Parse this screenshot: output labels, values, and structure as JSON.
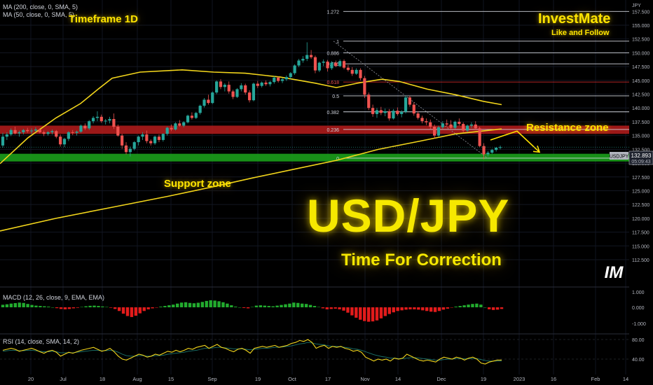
{
  "header": {
    "indicator_ma200": "MA (200, close, 0, SMA, 5)",
    "indicator_ma50": "MA (50, close, 0, SMA, 5)",
    "timeframe": "Timeframe 1D",
    "brand": "InvestMate",
    "brand_sub": "Like and Follow",
    "currency": "JPY"
  },
  "annotations": {
    "title": "USD/JPY",
    "subtitle": "Time For Correction",
    "support": "Support zone",
    "resistance": "Resistance zone",
    "logo": "IM"
  },
  "panels": {
    "macd_label": "MACD (12, 26, close, 9, EMA, EMA)",
    "rsi_label": "RSI (14, close, SMA, 14, 2)"
  },
  "price_tag": {
    "symbol": "USDJPY",
    "price": "132.893",
    "countdown": "05:09:43"
  },
  "colors": {
    "up": "#26a69a",
    "down": "#ef5350",
    "ma": "#f2d51b",
    "resistance": "#b71c1c",
    "support": "#1b9e1b",
    "accent": "#ffe400"
  },
  "chart_data": {
    "type": "candlestick",
    "price_axis": [
      "155.000",
      "152.500",
      "150.000",
      "147.500",
      "145.000",
      "142.500",
      "140.000",
      "137.500",
      "135.000",
      "132.500",
      "130.000",
      "127.500",
      "125.000",
      "122.500",
      "120.000",
      "117.500",
      "115.000",
      "112.500"
    ],
    "price_axis_top": "157.500",
    "x_ticks": [
      "20",
      "Jul",
      "18",
      "Aug",
      "15",
      "Sep",
      "19",
      "Oct",
      "17",
      "Nov",
      "14",
      "Dec",
      "19",
      "2023",
      "16",
      "Feb",
      "14"
    ],
    "fibonacci": [
      {
        "label": "1.272",
        "value": 157.5
      },
      {
        "label": "1",
        "value": 152.1
      },
      {
        "label": "0.886",
        "value": 150.0
      },
      {
        "label": "0.786",
        "value": 148.0
      },
      {
        "label": "0.618",
        "value": 144.7
      },
      {
        "label": "0.5",
        "value": 142.2
      },
      {
        "label": "0.382",
        "value": 139.3
      },
      {
        "label": "0.236",
        "value": 136.1
      },
      {
        "label": "0",
        "value": 130.9
      }
    ],
    "resistance_zone": [
      135.3,
      136.8
    ],
    "support_zone": [
      130.3,
      131.7
    ],
    "candles": [
      [
        133.2,
        135.5,
        132.8,
        134.8
      ],
      [
        134.8,
        135.6,
        134.2,
        135.2
      ],
      [
        135.2,
        136.3,
        134.9,
        136.0
      ],
      [
        136.0,
        136.6,
        135.2,
        135.4
      ],
      [
        135.4,
        135.9,
        134.8,
        135.6
      ],
      [
        135.6,
        136.2,
        135.2,
        136.0
      ],
      [
        136.0,
        136.4,
        135.5,
        135.8
      ],
      [
        135.8,
        136.3,
        135.3,
        135.9
      ],
      [
        135.9,
        136.5,
        135.6,
        136.1
      ],
      [
        136.1,
        136.3,
        135.4,
        135.6
      ],
      [
        135.6,
        135.9,
        134.9,
        135.3
      ],
      [
        135.3,
        135.8,
        135.0,
        135.6
      ],
      [
        135.6,
        136.1,
        135.2,
        135.8
      ],
      [
        135.8,
        136.0,
        134.5,
        134.8
      ],
      [
        134.8,
        135.2,
        133.0,
        133.4
      ],
      [
        133.4,
        134.6,
        132.9,
        134.4
      ],
      [
        134.4,
        135.8,
        134.0,
        135.6
      ],
      [
        135.6,
        136.0,
        135.1,
        135.5
      ],
      [
        135.5,
        135.9,
        135.0,
        135.7
      ],
      [
        135.7,
        137.0,
        135.5,
        136.8
      ],
      [
        136.8,
        137.2,
        136.0,
        136.3
      ],
      [
        136.3,
        137.8,
        136.0,
        137.6
      ],
      [
        137.6,
        138.5,
        137.2,
        138.2
      ],
      [
        138.2,
        139.4,
        137.6,
        138.4
      ],
      [
        138.4,
        138.8,
        137.3,
        137.6
      ],
      [
        137.6,
        138.0,
        137.0,
        137.7
      ],
      [
        137.7,
        138.4,
        137.2,
        138.0
      ],
      [
        138.0,
        139.0,
        136.2,
        136.6
      ],
      [
        136.6,
        137.0,
        134.8,
        135.0
      ],
      [
        135.0,
        135.3,
        132.6,
        133.2
      ],
      [
        133.2,
        133.8,
        131.6,
        132.0
      ],
      [
        132.0,
        133.0,
        131.2,
        132.6
      ],
      [
        132.6,
        134.0,
        132.3,
        133.8
      ],
      [
        133.8,
        135.0,
        133.2,
        134.8
      ],
      [
        134.8,
        135.6,
        134.2,
        135.2
      ],
      [
        135.2,
        135.9,
        133.6,
        134.0
      ],
      [
        134.0,
        134.3,
        133.2,
        133.6
      ],
      [
        133.6,
        135.0,
        133.3,
        134.8
      ],
      [
        134.8,
        135.2,
        133.8,
        134.2
      ],
      [
        134.2,
        135.4,
        133.9,
        135.3
      ],
      [
        135.3,
        136.6,
        135.0,
        136.4
      ],
      [
        136.4,
        137.0,
        135.8,
        136.1
      ],
      [
        136.1,
        137.4,
        135.9,
        137.2
      ],
      [
        137.2,
        137.8,
        136.6,
        136.8
      ],
      [
        136.8,
        137.6,
        136.5,
        137.4
      ],
      [
        137.4,
        138.8,
        137.2,
        138.6
      ],
      [
        138.6,
        139.2,
        137.9,
        138.2
      ],
      [
        138.2,
        139.3,
        138.0,
        139.1
      ],
      [
        139.1,
        140.6,
        138.8,
        140.4
      ],
      [
        140.4,
        141.8,
        140.1,
        141.5
      ],
      [
        141.5,
        142.4,
        140.6,
        140.9
      ],
      [
        140.9,
        143.0,
        140.7,
        142.8
      ],
      [
        142.8,
        145.0,
        142.5,
        144.8
      ],
      [
        144.8,
        145.2,
        143.4,
        143.8
      ],
      [
        143.8,
        144.5,
        143.0,
        144.2
      ],
      [
        144.2,
        144.8,
        142.6,
        143.0
      ],
      [
        143.0,
        143.3,
        141.6,
        142.0
      ],
      [
        142.0,
        143.6,
        141.8,
        143.4
      ],
      [
        143.4,
        144.5,
        143.0,
        144.1
      ],
      [
        144.1,
        144.4,
        142.4,
        142.8
      ],
      [
        142.8,
        143.2,
        141.0,
        141.4
      ],
      [
        141.4,
        144.6,
        141.2,
        144.4
      ],
      [
        144.4,
        144.9,
        143.6,
        144.0
      ],
      [
        144.0,
        144.8,
        143.7,
        144.6
      ],
      [
        144.6,
        145.0,
        144.0,
        144.3
      ],
      [
        144.3,
        144.9,
        143.9,
        144.7
      ],
      [
        144.7,
        145.8,
        144.4,
        145.5
      ],
      [
        145.5,
        145.7,
        144.6,
        144.9
      ],
      [
        144.9,
        145.4,
        144.5,
        145.2
      ],
      [
        145.2,
        145.9,
        144.9,
        145.6
      ],
      [
        145.6,
        146.5,
        145.3,
        146.3
      ],
      [
        146.3,
        147.9,
        146.0,
        147.7
      ],
      [
        147.7,
        148.9,
        147.4,
        148.6
      ],
      [
        148.6,
        149.4,
        148.2,
        148.9
      ],
      [
        148.9,
        151.9,
        148.5,
        149.6
      ],
      [
        149.6,
        150.5,
        148.9,
        149.2
      ],
      [
        149.2,
        149.5,
        146.3,
        146.8
      ],
      [
        146.8,
        148.4,
        146.5,
        148.2
      ],
      [
        148.2,
        148.8,
        147.6,
        148.4
      ],
      [
        148.4,
        148.7,
        146.6,
        147.2
      ],
      [
        147.2,
        148.5,
        146.9,
        148.2
      ],
      [
        148.2,
        148.6,
        147.4,
        147.6
      ],
      [
        147.6,
        148.8,
        147.4,
        148.5
      ],
      [
        148.5,
        148.8,
        147.0,
        147.3
      ],
      [
        147.3,
        147.8,
        146.6,
        146.9
      ],
      [
        146.9,
        147.4,
        145.8,
        146.2
      ],
      [
        146.2,
        147.2,
        146.0,
        146.9
      ],
      [
        146.9,
        147.2,
        145.0,
        145.4
      ],
      [
        145.4,
        145.8,
        141.8,
        142.4
      ],
      [
        142.4,
        142.8,
        139.6,
        140.0
      ],
      [
        140.0,
        140.6,
        138.4,
        138.9
      ],
      [
        138.9,
        140.0,
        138.2,
        139.6
      ],
      [
        139.6,
        140.2,
        138.7,
        139.1
      ],
      [
        139.1,
        139.9,
        138.5,
        139.4
      ],
      [
        139.4,
        139.8,
        137.7,
        138.1
      ],
      [
        138.1,
        139.8,
        137.9,
        139.5
      ],
      [
        139.5,
        140.1,
        138.6,
        138.9
      ],
      [
        138.9,
        139.6,
        138.3,
        139.3
      ],
      [
        139.3,
        142.3,
        139.0,
        141.9
      ],
      [
        141.9,
        142.2,
        140.2,
        140.6
      ],
      [
        140.6,
        141.0,
        138.6,
        139.0
      ],
      [
        139.0,
        139.4,
        137.9,
        138.2
      ],
      [
        138.2,
        138.6,
        137.2,
        137.6
      ],
      [
        137.6,
        138.1,
        136.9,
        137.4
      ],
      [
        137.4,
        137.9,
        136.2,
        136.6
      ],
      [
        136.6,
        137.0,
        134.5,
        135.0
      ],
      [
        135.0,
        136.8,
        134.7,
        136.5
      ],
      [
        136.5,
        137.6,
        136.2,
        137.2
      ],
      [
        137.2,
        137.9,
        136.7,
        137.0
      ],
      [
        137.0,
        137.8,
        136.1,
        136.4
      ],
      [
        136.4,
        137.7,
        136.2,
        137.5
      ],
      [
        137.5,
        138.1,
        136.8,
        137.1
      ],
      [
        137.1,
        137.4,
        135.6,
        135.9
      ],
      [
        135.9,
        137.0,
        135.6,
        136.8
      ],
      [
        136.8,
        137.4,
        136.4,
        137.0
      ],
      [
        137.0,
        137.6,
        136.0,
        136.3
      ],
      [
        136.3,
        136.6,
        132.9,
        133.1
      ],
      [
        133.1,
        133.6,
        130.7,
        131.6
      ],
      [
        131.6,
        132.2,
        131.2,
        131.9
      ],
      [
        131.9,
        132.6,
        131.7,
        132.4
      ],
      [
        132.4,
        132.9,
        132.1,
        132.8
      ],
      [
        132.8,
        133.2,
        132.5,
        132.9
      ]
    ],
    "ma50": [
      [
        0,
        129.9
      ],
      [
        40,
        134.6
      ],
      [
        80,
        138.2
      ],
      [
        115,
        140.8
      ],
      [
        140,
        143.4
      ],
      [
        160,
        145.4
      ],
      [
        200,
        146.5
      ],
      [
        260,
        146.9
      ],
      [
        305,
        146.5
      ],
      [
        350,
        146.3
      ],
      [
        400,
        145.6
      ],
      [
        450,
        144.5
      ],
      [
        480,
        143.7
      ],
      [
        510,
        144.5
      ],
      [
        545,
        145.2
      ],
      [
        570,
        144.8
      ],
      [
        610,
        143.4
      ],
      [
        650,
        142.4
      ],
      [
        690,
        141.2
      ],
      [
        716,
        140.6
      ]
    ],
    "ma200": [
      [
        0,
        117.7
      ],
      [
        80,
        120.0
      ],
      [
        160,
        122.0
      ],
      [
        240,
        124.0
      ],
      [
        300,
        125.6
      ],
      [
        360,
        127.3
      ],
      [
        420,
        128.9
      ],
      [
        480,
        130.5
      ],
      [
        540,
        132.5
      ],
      [
        600,
        134.0
      ],
      [
        650,
        135.3
      ],
      [
        716,
        136.2
      ]
    ],
    "projection": [
      [
        700,
        134.2
      ],
      [
        738,
        135.8
      ],
      [
        770,
        132.0
      ]
    ],
    "macd": {
      "axis": [
        "1.000",
        "0.000",
        "-1.000"
      ],
      "histogram": [
        0.15,
        0.18,
        0.22,
        0.25,
        0.28,
        0.26,
        0.2,
        0.14,
        0.1,
        0.08,
        0.06,
        0.04,
        0.0,
        -0.05,
        -0.1,
        -0.12,
        -0.1,
        -0.06,
        -0.03,
        0.02,
        0.06,
        0.09,
        0.1,
        0.08,
        0.05,
        0.02,
        -0.03,
        -0.1,
        -0.22,
        -0.38,
        -0.52,
        -0.58,
        -0.5,
        -0.36,
        -0.22,
        -0.12,
        -0.06,
        -0.02,
        0.04,
        0.08,
        0.12,
        0.16,
        0.22,
        0.28,
        0.3,
        0.26,
        0.24,
        0.27,
        0.32,
        0.38,
        0.42,
        0.4,
        0.36,
        0.3,
        0.22,
        0.12,
        0.04,
        0.0,
        -0.04,
        -0.06,
        0.02,
        0.1,
        0.12,
        0.1,
        0.08,
        0.06,
        0.1,
        0.14,
        0.18,
        0.22,
        0.28,
        0.26,
        0.22,
        0.2,
        0.14,
        0.08,
        0.02,
        -0.06,
        -0.12,
        -0.1,
        -0.08,
        -0.12,
        -0.2,
        -0.32,
        -0.48,
        -0.62,
        -0.74,
        -0.82,
        -0.86,
        -0.84,
        -0.78,
        -0.66,
        -0.52,
        -0.4,
        -0.3,
        -0.22,
        -0.18,
        -0.14,
        -0.12,
        -0.12,
        -0.14,
        -0.18,
        -0.22,
        -0.26,
        -0.28,
        -0.22,
        -0.14,
        -0.08,
        -0.02,
        0.04,
        0.08,
        0.12,
        0.16,
        0.2,
        0.22,
        0.16,
        0.0,
        -0.12,
        -0.16,
        -0.14,
        -0.1
      ]
    },
    "rsi": {
      "axis": [
        "80.00",
        "40.00"
      ],
      "values": [
        58,
        60,
        62,
        60,
        56,
        58,
        60,
        62,
        59,
        55,
        52,
        56,
        58,
        54,
        46,
        50,
        54,
        52,
        55,
        58,
        60,
        62,
        64,
        60,
        56,
        58,
        62,
        55,
        46,
        40,
        38,
        42,
        46,
        50,
        48,
        44,
        46,
        50,
        48,
        52,
        56,
        54,
        58,
        55,
        58,
        62,
        60,
        64,
        66,
        68,
        62,
        66,
        70,
        64,
        62,
        58,
        55,
        60,
        62,
        58,
        52,
        62,
        64,
        66,
        64,
        66,
        68,
        64,
        66,
        68,
        72,
        74,
        78,
        76,
        80,
        74,
        62,
        66,
        68,
        62,
        66,
        64,
        66,
        62,
        60,
        56,
        58,
        54,
        44,
        40,
        36,
        40,
        38,
        40,
        36,
        42,
        40,
        42,
        50,
        46,
        42,
        38,
        36,
        38,
        36,
        34,
        40,
        44,
        42,
        40,
        44,
        42,
        38,
        42,
        44,
        40,
        32,
        30,
        34,
        36,
        38,
        38
      ],
      "ma": [
        56,
        57,
        58,
        58,
        57,
        57,
        58,
        58,
        57,
        56,
        55,
        55,
        56,
        55,
        53,
        53,
        53,
        53,
        54,
        55,
        56,
        57,
        58,
        58,
        57,
        57,
        58,
        57,
        54,
        50,
        47,
        46,
        46,
        47,
        47,
        46,
        46,
        47,
        47,
        48,
        50,
        51,
        52,
        53,
        54,
        56,
        57,
        58,
        60,
        62,
        62,
        63,
        64,
        64,
        63,
        62,
        61,
        61,
        61,
        60,
        59,
        60,
        61,
        62,
        62,
        63,
        64,
        64,
        65,
        66,
        67,
        69,
        71,
        72,
        74,
        73,
        71,
        70,
        69,
        67,
        66,
        66,
        65,
        64,
        63,
        61,
        60,
        58,
        55,
        52,
        49,
        47,
        45,
        44,
        42,
        42,
        41,
        41,
        42,
        43,
        43,
        42,
        41,
        40,
        39,
        38,
        38,
        39,
        40,
        40,
        41,
        41,
        41,
        41,
        41,
        41,
        39,
        37,
        36,
        36,
        36,
        36
      ]
    }
  }
}
